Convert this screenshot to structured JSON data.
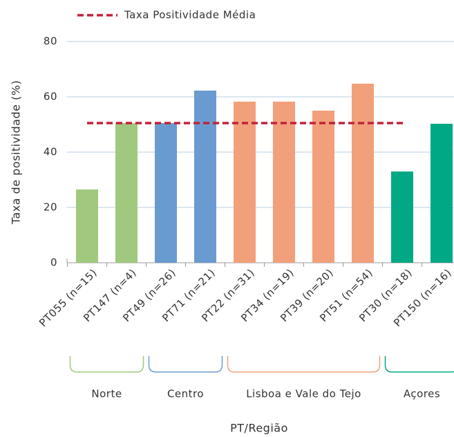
{
  "chart_data": {
    "type": "bar",
    "x_label": "PT/Região",
    "y_label": "Taxa de positividade (%)",
    "categories": [
      "PT055 (n=15)",
      "PT147 (n=4)",
      "PT49 (n=26)",
      "PT71 (n=21)",
      "PT22 (n=31)",
      "PT34 (n=19)",
      "PT39 (n=20)",
      "PT51 (n=54)",
      "PT30 (n=18)",
      "PT150 (n=16)"
    ],
    "values": [
      26.5,
      50.5,
      50.5,
      62.25,
      58.25,
      58.25,
      55,
      64.75,
      33,
      50.25
    ],
    "colors": [
      "#a0c97f",
      "#a0c97f",
      "#6a9bd0",
      "#6a9bd0",
      "#f2a07b",
      "#f2a07b",
      "#f2a07b",
      "#f2a07b",
      "#00a885",
      "#00a885"
    ],
    "groups": [
      {
        "name": "Norte",
        "first": 0,
        "last": 1,
        "color": "#a0c97f"
      },
      {
        "name": "Centro",
        "first": 2,
        "last": 3,
        "color": "#6a9bd0"
      },
      {
        "name": "Lisboa e Vale do Tejo",
        "first": 4,
        "last": 7,
        "color": "#f2a07b"
      },
      {
        "name": "Açores",
        "first": 8,
        "last": 9,
        "color": "#00a885"
      }
    ],
    "average": {
      "name": "Taxa Positividade Média",
      "value": 50.5,
      "color": "#c0223b"
    },
    "ylim": [
      0,
      80
    ],
    "yticks": [
      0,
      20,
      40,
      60,
      80
    ],
    "grid": true
  }
}
